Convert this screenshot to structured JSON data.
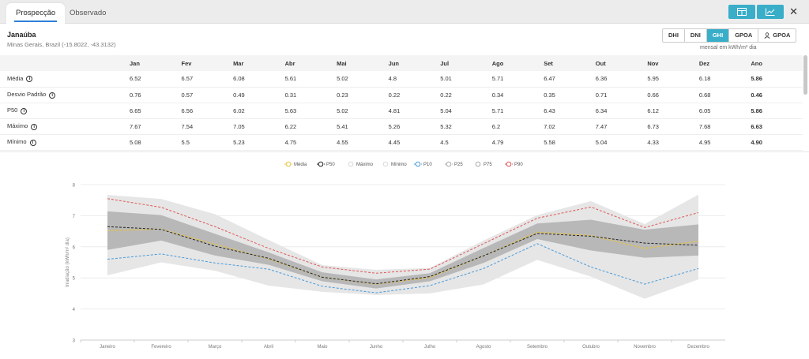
{
  "tabs": [
    {
      "label": "Prospecção",
      "active": true
    },
    {
      "label": "Observado",
      "active": false
    }
  ],
  "toolbar": {
    "table_icon": "table-icon",
    "chart_icon": "line-chart-icon",
    "close_label": "✕",
    "accent": "#3aaec9"
  },
  "location": {
    "title": "Janaúba",
    "subtitle": "Minas Gerais, Brazil (-15.8022, -43.3132)"
  },
  "irradiance_modes": [
    {
      "label": "DHI",
      "active": false
    },
    {
      "label": "DNI",
      "active": false
    },
    {
      "label": "GHI",
      "active": true
    },
    {
      "label": "GPOA",
      "active": false
    },
    {
      "label": "GPOA",
      "active": false,
      "icon": "user-icon"
    }
  ],
  "units": "mensal em kWh/m² dia",
  "table": {
    "columns": [
      "",
      "Jan",
      "Fev",
      "Mar",
      "Abr",
      "Mai",
      "Jun",
      "Jul",
      "Ago",
      "Set",
      "Out",
      "Nov",
      "Dez",
      "Ano"
    ],
    "rows": [
      {
        "label": "Média",
        "values": [
          "6.52",
          "6.57",
          "6.08",
          "5.61",
          "5.02",
          "4.8",
          "5.01",
          "5.71",
          "6.47",
          "6.36",
          "5.95",
          "6.18",
          "5.86"
        ]
      },
      {
        "label": "Desvio Padrão",
        "values": [
          "0.76",
          "0.57",
          "0.49",
          "0.31",
          "0.23",
          "0.22",
          "0.22",
          "0.34",
          "0.35",
          "0.71",
          "0.66",
          "0.68",
          "0.46"
        ]
      },
      {
        "label": "P50",
        "values": [
          "6.65",
          "6.56",
          "6.02",
          "5.63",
          "5.02",
          "4.81",
          "5.04",
          "5.71",
          "6.43",
          "6.34",
          "6.12",
          "6.05",
          "5.86"
        ]
      },
      {
        "label": "Máximo",
        "values": [
          "7.67",
          "7.54",
          "7.05",
          "6.22",
          "5.41",
          "5.26",
          "5.32",
          "6.2",
          "7.02",
          "7.47",
          "6.73",
          "7.68",
          "6.63"
        ]
      },
      {
        "label": "Mínimo",
        "values": [
          "5.08",
          "5.5",
          "5.23",
          "4.75",
          "4.55",
          "4.45",
          "4.5",
          "4.79",
          "5.58",
          "5.04",
          "4.33",
          "4.95",
          "4.90"
        ]
      }
    ]
  },
  "chart_data": {
    "type": "line",
    "categories": [
      "Janeiro",
      "Fevereiro",
      "Março",
      "Abril",
      "Maio",
      "Junho",
      "Julho",
      "Agosto",
      "Setembro",
      "Outubro",
      "Novembro",
      "Dezembro"
    ],
    "ylabel": "Irradiação (kWh/m² dia)",
    "ylim": [
      3,
      8
    ],
    "yticks": [
      "3",
      "4",
      "5",
      "6",
      "7",
      "8"
    ],
    "legend_position": "top-center",
    "series": [
      {
        "name": "Média",
        "color": "#e8c23a",
        "style": "dashed",
        "values": [
          6.52,
          6.57,
          6.08,
          5.61,
          5.02,
          4.8,
          5.01,
          5.71,
          6.47,
          6.36,
          5.95,
          6.18
        ]
      },
      {
        "name": "P50",
        "color": "#222222",
        "style": "dashed",
        "values": [
          6.65,
          6.56,
          6.02,
          5.63,
          5.02,
          4.81,
          5.04,
          5.71,
          6.43,
          6.34,
          6.12,
          6.05
        ]
      },
      {
        "name": "Máximo",
        "color": "#e6e6e6",
        "style": "band-upper",
        "values": [
          7.67,
          7.54,
          7.05,
          6.22,
          5.41,
          5.26,
          5.32,
          6.2,
          7.02,
          7.47,
          6.73,
          7.68
        ]
      },
      {
        "name": "Mínimo",
        "color": "#e6e6e6",
        "style": "band-lower",
        "values": [
          5.08,
          5.5,
          5.23,
          4.75,
          4.55,
          4.45,
          4.5,
          4.79,
          5.58,
          5.04,
          4.33,
          4.95
        ]
      },
      {
        "name": "P10",
        "color": "#4a9bd9",
        "style": "dashed",
        "values": [
          5.6,
          5.77,
          5.48,
          5.28,
          4.73,
          4.52,
          4.75,
          5.3,
          6.1,
          5.35,
          4.8,
          5.3
        ]
      },
      {
        "name": "P25",
        "color": "#bdbdbd",
        "style": "band-lower",
        "values": [
          5.9,
          6.2,
          5.72,
          5.42,
          4.89,
          4.66,
          4.89,
          5.48,
          6.25,
          5.88,
          5.65,
          5.72
        ]
      },
      {
        "name": "P75",
        "color": "#bdbdbd",
        "style": "band-upper",
        "values": [
          7.14,
          7.02,
          6.42,
          5.82,
          5.18,
          4.95,
          5.15,
          5.96,
          6.75,
          6.87,
          6.55,
          6.72
        ]
      },
      {
        "name": "P90",
        "color": "#e05555",
        "style": "dashed",
        "values": [
          7.55,
          7.27,
          6.65,
          5.95,
          5.35,
          5.15,
          5.28,
          6.1,
          6.92,
          7.28,
          6.62,
          7.1
        ]
      }
    ]
  }
}
